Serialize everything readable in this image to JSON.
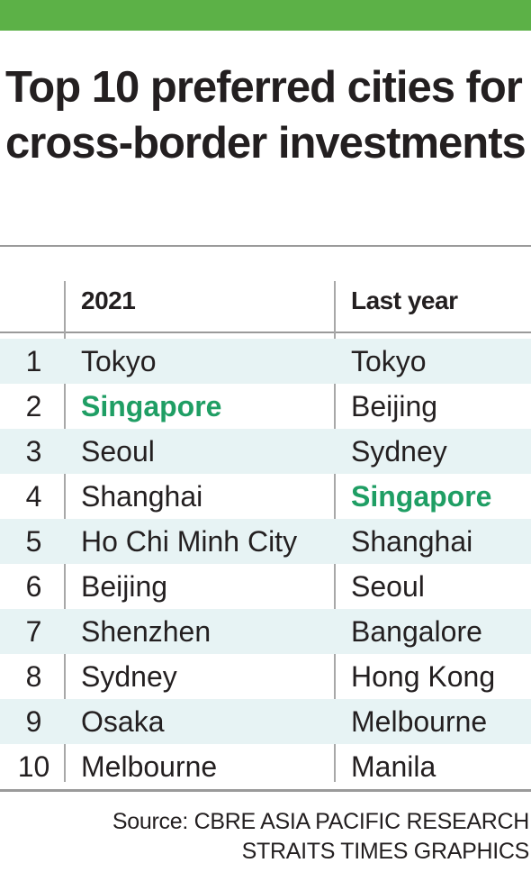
{
  "title": "Top 10 preferred cities for cross-border investments",
  "table": {
    "headers": [
      "",
      "2021",
      "Last year"
    ],
    "highlight_city": "Singapore",
    "highlight_color": "#1f9e64",
    "row_shade_color": "#e7f3f4",
    "rows": [
      {
        "rank": "1",
        "y2021": "Tokyo",
        "last_year": "Tokyo"
      },
      {
        "rank": "2",
        "y2021": "Singapore",
        "last_year": "Beijing"
      },
      {
        "rank": "3",
        "y2021": "Seoul",
        "last_year": "Sydney"
      },
      {
        "rank": "4",
        "y2021": "Shanghai",
        "last_year": "Singapore"
      },
      {
        "rank": "5",
        "y2021": "Ho Chi Minh City",
        "last_year": "Shanghai"
      },
      {
        "rank": "6",
        "y2021": "Beijing",
        "last_year": "Seoul"
      },
      {
        "rank": "7",
        "y2021": "Shenzhen",
        "last_year": "Bangalore"
      },
      {
        "rank": "8",
        "y2021": "Sydney",
        "last_year": "Hong Kong"
      },
      {
        "rank": "9",
        "y2021": "Osaka",
        "last_year": "Melbourne"
      },
      {
        "rank": "10",
        "y2021": "Melbourne",
        "last_year": "Manila"
      }
    ]
  },
  "footer": {
    "source": "Source: CBRE ASIA PACIFIC RESEARCH",
    "credit": "STRAITS TIMES GRAPHICS"
  },
  "accent_bar_color": "#5cb147"
}
